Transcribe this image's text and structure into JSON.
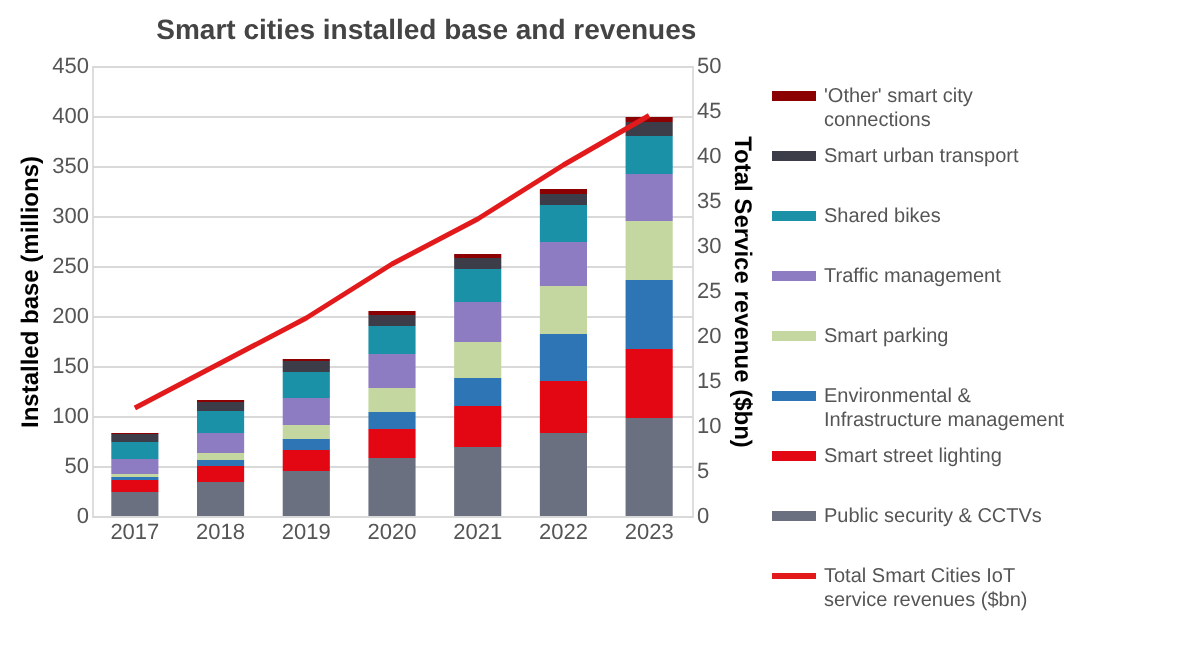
{
  "chart_data": {
    "type": "bar",
    "title": "Smart cities installed base and revenues",
    "categories": [
      "2017",
      "2018",
      "2019",
      "2020",
      "2021",
      "2022",
      "2023"
    ],
    "stacked": true,
    "series": [
      {
        "name": "Public security & CCTVs",
        "color": "#6b7080",
        "values": [
          24,
          34,
          45,
          58,
          69,
          83,
          98
        ]
      },
      {
        "name": "Smart street lighting",
        "color": "#e30613",
        "values": [
          12,
          16,
          21,
          29,
          41,
          52,
          69
        ]
      },
      {
        "name": "Environmental & Infrastructure management",
        "color": "#2e75b6",
        "values": [
          3,
          6,
          11,
          17,
          28,
          47,
          69
        ]
      },
      {
        "name": "Smart parking",
        "color": "#c4d7a0",
        "values": [
          3,
          7,
          14,
          24,
          36,
          48,
          59
        ]
      },
      {
        "name": "Traffic management",
        "color": "#8e7cc3",
        "values": [
          15,
          20,
          27,
          34,
          40,
          44,
          47
        ]
      },
      {
        "name": "Shared bikes",
        "color": "#1b91a8",
        "values": [
          17,
          22,
          26,
          28,
          33,
          37,
          38
        ]
      },
      {
        "name": "Smart urban transport",
        "color": "#3d3d4a",
        "values": [
          8,
          9,
          11,
          11,
          11,
          11,
          14
        ]
      },
      {
        "name": "'Other' smart city connections",
        "color": "#8b0000",
        "values": [
          1,
          2,
          2,
          4,
          4,
          5,
          5
        ]
      },
      {
        "name": "Total Smart Cities IoT service revenues ($bn)",
        "type": "line",
        "axis": "y2",
        "color": "#e31a1c",
        "values": [
          12,
          17,
          22,
          28,
          33,
          39,
          44.5
        ]
      }
    ],
    "ylabel": "Installed base (millions)",
    "y2label": "Total Service revenue ($bn)",
    "ylim": [
      0,
      450
    ],
    "yticks": [
      0,
      50,
      100,
      150,
      200,
      250,
      300,
      350,
      400,
      450
    ],
    "y2lim": [
      0,
      50
    ],
    "y2ticks": [
      0,
      5,
      10,
      15,
      20,
      25,
      30,
      35,
      40,
      45,
      50
    ],
    "grid": "y",
    "legend": "right",
    "line_style": "solid",
    "marker": "none"
  }
}
